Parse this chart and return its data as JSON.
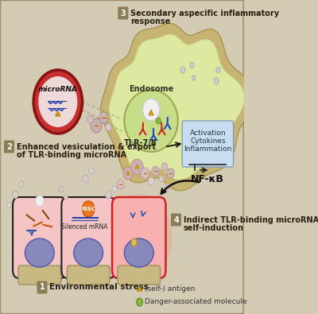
{
  "bg_color": "#d4cbb5",
  "border_color": "#a09070",
  "label1": "Environmental stress",
  "label2_line1": "Enhanced vesiculation & export",
  "label2_line2": "of TLR-binding microRNA",
  "label3_line1": "Secondary aspecific inflammatory",
  "label3_line2": "response",
  "label4_line1": "Indirect TLR-binding microRNA",
  "label4_line2": "self-induction",
  "legend1": "(self-) antigen",
  "legend2": "Danger-associated molecule",
  "endosome_label": "Endosome",
  "tlr_label": "TLR-7/8",
  "nfkb_label": "NF-κB",
  "activation_line1": "Activation",
  "activation_line2": "Cytokines",
  "activation_line3": "Inflammation",
  "microrna_label": "microRNA",
  "silenced_label": "Silenced mRNA",
  "risc_label": "RISC",
  "num_bg": "#8b7d55",
  "num_text": "#ffffff",
  "cell_fill": "#f5c5c5",
  "cell_border": "#222222",
  "nucleus_fill": "#8888bb",
  "cell_glow": "#ee6666",
  "immune_outer_fill": "#c8b472",
  "immune_inner_fill": "#dde8a0",
  "endosome_fill": "#c8dd88",
  "activation_box_fill": "#c8ddf0",
  "activation_box_border": "#8899bb",
  "microrna_fill": "#c83030",
  "microrna_inner": "#e8c8c8",
  "microrna_border": "#881111",
  "platform_fill": "#c8b882",
  "platform_border": "#a09060"
}
